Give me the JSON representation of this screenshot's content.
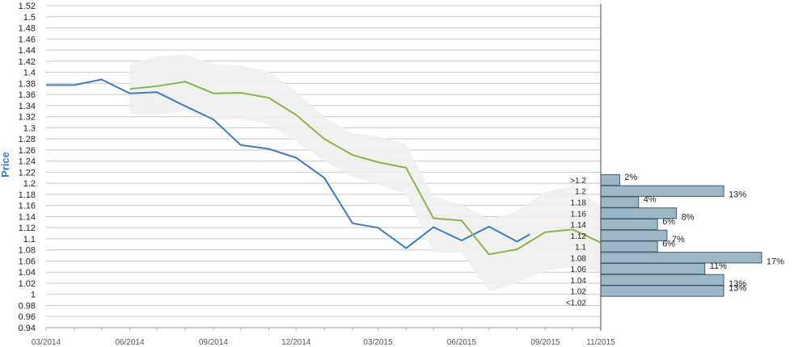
{
  "chart_data": {
    "type": "line",
    "ylabel": "Price",
    "ylim": [
      0.94,
      1.52
    ],
    "y_ticks": [
      "0.94",
      "0.96",
      "0.98",
      "1",
      "1.02",
      "1.04",
      "1.06",
      "1.08",
      "1.1",
      "1.12",
      "1.14",
      "1.16",
      "1.18",
      "1.2",
      "1.22",
      "1.24",
      "1.26",
      "1.28",
      "1.3",
      "1.32",
      "1.34",
      "1.36",
      "1.38",
      "1.4",
      "1.42",
      "1.44",
      "1.46",
      "1.48",
      "1.5",
      "1.52"
    ],
    "x_range": [
      "2014-03-01",
      "2015-11-01"
    ],
    "x_ticks": [
      "03/2014",
      "06/2014",
      "09/2014",
      "12/2014",
      "03/2015",
      "06/2015",
      "09/2015",
      "11/2015"
    ],
    "x_tick_dates": [
      "2014-03-01",
      "2014-06-01",
      "2014-09-01",
      "2014-12-01",
      "2015-03-01",
      "2015-06-01",
      "2015-09-01",
      "2015-11-01"
    ],
    "grid": true,
    "colors": {
      "actual": "#3d7bc4",
      "forecast": "#8db24e",
      "band": "#efefef",
      "hist_bar": "#9fb6c5",
      "hist_border": "#3a5c72",
      "grid": "#c8c8c8"
    },
    "series": [
      {
        "key": "actual",
        "x": [
          "2014-03-01",
          "2014-04-01",
          "2014-05-01",
          "2014-06-01",
          "2014-07-01",
          "2014-08-01",
          "2014-09-01",
          "2014-10-01",
          "2014-11-01",
          "2014-12-01",
          "2015-01-01",
          "2015-02-01",
          "2015-03-01",
          "2015-04-01",
          "2015-05-01",
          "2015-06-01",
          "2015-07-01",
          "2015-08-01",
          "2015-08-15"
        ],
        "y": [
          1.377,
          1.377,
          1.387,
          1.362,
          1.364,
          1.339,
          1.315,
          1.269,
          1.262,
          1.246,
          1.21,
          1.128,
          1.12,
          1.083,
          1.121,
          1.097,
          1.122,
          1.095,
          1.108
        ]
      },
      {
        "key": "forecast",
        "x": [
          "2014-06-01",
          "2014-07-01",
          "2014-08-01",
          "2014-09-01",
          "2014-10-01",
          "2014-11-01",
          "2014-12-01",
          "2015-01-01",
          "2015-02-01",
          "2015-03-01",
          "2015-04-01",
          "2015-05-01",
          "2015-06-01",
          "2015-07-01",
          "2015-08-01",
          "2015-09-01",
          "2015-10-01",
          "2015-11-01"
        ],
        "y": [
          1.37,
          1.375,
          1.383,
          1.362,
          1.363,
          1.354,
          1.323,
          1.28,
          1.251,
          1.238,
          1.228,
          1.137,
          1.133,
          1.072,
          1.081,
          1.112,
          1.117,
          1.093
        ]
      }
    ],
    "band": {
      "x": [
        "2014-06-01",
        "2014-07-01",
        "2014-08-01",
        "2014-09-01",
        "2014-10-01",
        "2014-11-01",
        "2014-12-01",
        "2015-01-01",
        "2015-02-01",
        "2015-03-01",
        "2015-04-01",
        "2015-05-01",
        "2015-06-01",
        "2015-07-01",
        "2015-08-01",
        "2015-09-01",
        "2015-10-01",
        "2015-11-01"
      ],
      "upper": [
        1.415,
        1.428,
        1.432,
        1.415,
        1.412,
        1.402,
        1.365,
        1.32,
        1.29,
        1.285,
        1.27,
        1.175,
        1.162,
        1.135,
        1.15,
        1.185,
        1.195,
        1.16
      ],
      "lower": [
        1.325,
        1.323,
        1.33,
        1.315,
        1.316,
        1.306,
        1.275,
        1.24,
        1.212,
        1.198,
        1.18,
        1.075,
        1.075,
        1.005,
        1.02,
        1.042,
        1.05,
        1.04
      ]
    },
    "histogram": {
      "bins": [
        ">1.2",
        "1.2",
        "1.18",
        "1.16",
        "1.14",
        "1.12",
        "1.1",
        "1.08",
        "1.06",
        "1.04",
        "1.02",
        "<1.02"
      ],
      "percents": [
        2,
        13,
        4,
        8,
        6,
        7,
        6,
        17,
        11,
        13,
        13,
        null
      ],
      "labels": [
        "2%",
        "13%",
        "4%",
        "8%",
        "6%",
        "7%",
        "6%",
        "17%",
        "11%",
        "13%",
        "13%",
        ""
      ]
    }
  }
}
